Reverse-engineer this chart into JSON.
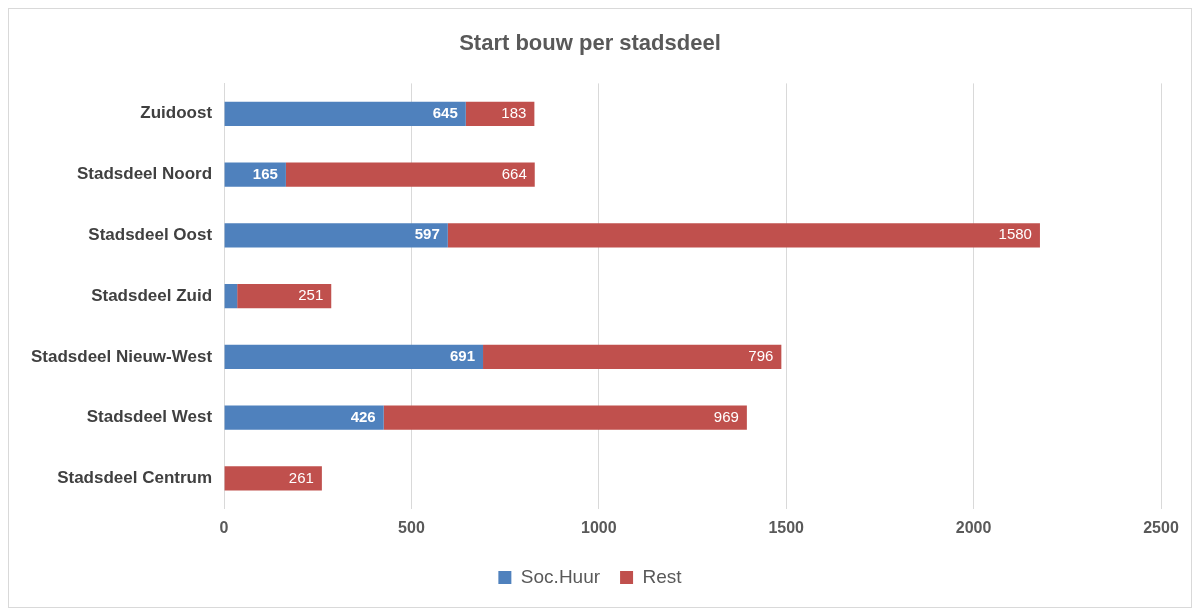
{
  "chart_data": {
    "type": "bar",
    "title": "Start bouw per stadsdeel",
    "orientation": "horizontal",
    "stacked": true,
    "categories": [
      "Zuidoost",
      "Stadsdeel Noord",
      "Stadsdeel Oost",
      "Stadsdeel Zuid",
      "Stadsdeel Nieuw-West",
      "Stadsdeel West",
      "Stadsdeel Centrum"
    ],
    "series": [
      {
        "name": "Soc.Huur",
        "color": "#4f81bd",
        "values": [
          645,
          165,
          597,
          35,
          691,
          426,
          0
        ],
        "value_labels": [
          "645",
          "165",
          "597",
          null,
          "691",
          "426",
          null
        ]
      },
      {
        "name": "Rest",
        "color": "#c0504d",
        "values": [
          183,
          664,
          1580,
          251,
          796,
          969,
          261
        ],
        "value_labels": [
          "183",
          "664",
          "1580",
          "251",
          "796",
          "969",
          "261"
        ]
      }
    ],
    "xlim": [
      0,
      2500
    ],
    "xticks": [
      0,
      500,
      1000,
      1500,
      2000,
      2500
    ],
    "grid": "x",
    "legend": "bottom"
  }
}
